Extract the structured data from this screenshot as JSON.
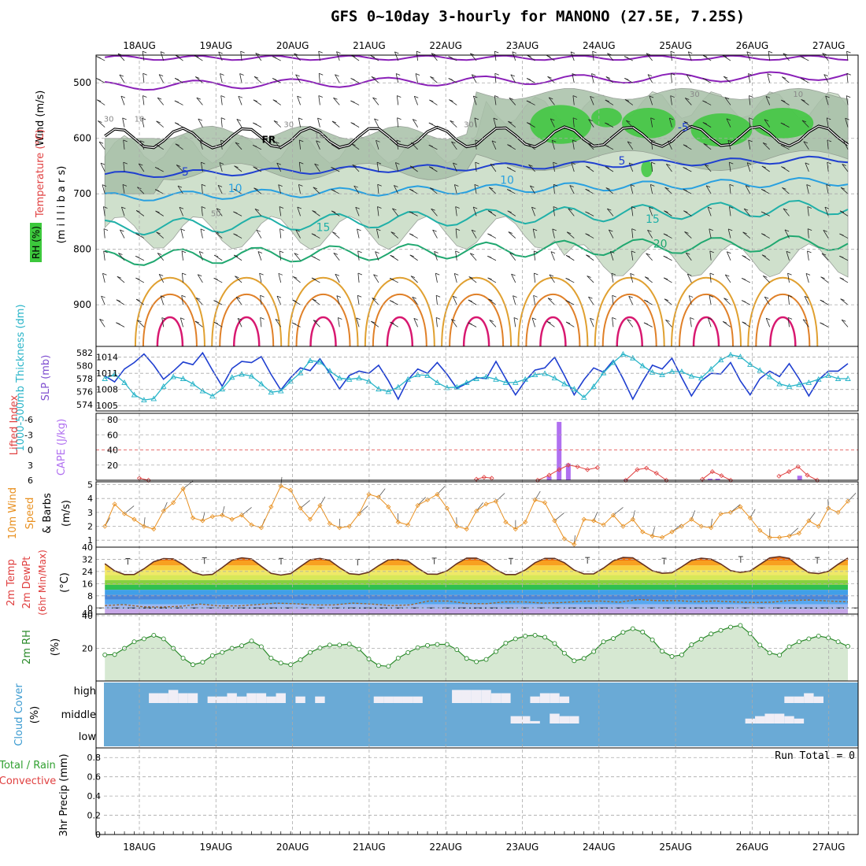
{
  "title": "GFS 0~10day 3-hourly for MANONO (27.5E, 7.25S)",
  "colors": {
    "frame": "#000000",
    "grid": "#aaaaaa",
    "rh_fill": "#cfe0cc",
    "rh_dark": "#a8c0a8",
    "rh_green": "#3cc83c",
    "slp_line": "#1f3fd0",
    "thickness_line": "#28b4c8",
    "cape_bar": "#b070f0",
    "li_line": "#e04040",
    "wind_line": "#e89020",
    "temp_line": "#663322",
    "dew_line": "#996633",
    "rh2m_line": "#2a8a2a",
    "rh2m_fill": "#d6e8d2",
    "cloud_bg": "#6aaad6",
    "cloud_fill": "#f0eef6",
    "precip_line": "#30a030"
  },
  "chart_data": [
    {
      "panel": "upper-air",
      "type": "line",
      "x_dates": [
        "18AUG",
        "19AUG",
        "20AUG",
        "21AUG",
        "22AUG",
        "23AUG",
        "24AUG",
        "25AUG",
        "26AUG",
        "27AUG"
      ],
      "left_labels": {
        "wind": "Wind (m/s)",
        "temperature": "Temperature (°C)",
        "rh": "RH (%)",
        "pressure": "(m i l l i b a r s)"
      },
      "y_ticks": [
        500,
        600,
        700,
        800,
        900
      ],
      "ylim": [
        450,
        975
      ],
      "freezing_label": "FR",
      "isotherms": [
        {
          "label": "-5",
          "level": 580,
          "color": "#1f3fd0",
          "label_x": 7.1
        },
        {
          "label": "5",
          "level": 660,
          "color": "#1f3fd0",
          "label_x": 0.6
        },
        {
          "label": "5",
          "level": 640,
          "color": "#1f3fd0",
          "label_x": 6.3
        },
        {
          "label": "10",
          "level": 690,
          "color": "#28a0e0",
          "label_x": 1.25
        },
        {
          "label": "10",
          "level": 675,
          "color": "#28a0e0",
          "label_x": 4.8
        },
        {
          "label": "15",
          "level": 760,
          "color": "#20b0a8",
          "label_x": 2.4
        },
        {
          "label": "15",
          "level": 745,
          "color": "#20b0a8",
          "label_x": 6.7
        },
        {
          "label": "20",
          "level": 790,
          "color": "#20a870",
          "label_x": 6.8
        }
      ],
      "rh_contour_labels": [
        "30",
        "10",
        "30",
        "10",
        "30",
        "50",
        "30",
        "10"
      ]
    },
    {
      "panel": "slp-thickness",
      "type": "line",
      "left_label_thickness": "1000-500mb Thickness (dm)",
      "left_label_slp": "SLP (mb)",
      "thickness_ticks": [
        582,
        580,
        578,
        576,
        574
      ],
      "slp_ticks": [
        1014,
        1011,
        1008,
        1005
      ],
      "thickness_ylim": [
        573,
        583
      ],
      "slp_ylim": [
        1004,
        1016
      ],
      "series": [
        {
          "name": "SLP",
          "values": [
            1010.5,
            1009.4,
            1011.8,
            1013.0,
            1014.6,
            1012.5,
            1009.9,
            1011.4,
            1013.1,
            1012.6,
            1014.8,
            1011.6,
            1008.6,
            1011.9,
            1013.2,
            1013.0,
            1014.1,
            1010.8,
            1007.9,
            1010.2,
            1012.0,
            1011.5,
            1013.7,
            1011.0,
            1008.1,
            1010.6,
            1011.4,
            1011.0,
            1012.5,
            1009.6,
            1006.2,
            1009.8,
            1011.8,
            1011.0,
            1013.0,
            1010.8,
            1008.2,
            1009.1,
            1010.2,
            1010.0,
            1013.2,
            1010.0,
            1007.0,
            1009.6,
            1011.6,
            1012.0,
            1014.0,
            1010.6,
            1007.0,
            1009.8,
            1012.0,
            1011.2,
            1013.4,
            1010.0,
            1006.2,
            1009.5,
            1012.5,
            1011.8,
            1013.8,
            1010.2,
            1006.8,
            1009.6,
            1011.0,
            1010.9,
            1013.0,
            1009.6,
            1007.0,
            1010.0,
            1011.4,
            1010.4,
            1012.8,
            1010.0,
            1006.8,
            1009.8,
            1011.4,
            1011.4,
            1012.8
          ]
        },
        {
          "name": "Thickness",
          "values": [
            578.0,
            578.7,
            577.4,
            575.5,
            574.7,
            574.9,
            576.8,
            578.3,
            578.0,
            577.2,
            576.1,
            575.3,
            576.4,
            578.2,
            578.7,
            578.4,
            577.2,
            575.9,
            576.1,
            577.6,
            578.9,
            580.8,
            580.6,
            579.2,
            578.1,
            577.9,
            578.1,
            577.6,
            576.4,
            576.0,
            576.7,
            577.9,
            578.6,
            578.5,
            577.4,
            576.6,
            576.7,
            577.4,
            578.0,
            578.3,
            577.9,
            577.4,
            577.4,
            577.9,
            578.6,
            578.8,
            578.1,
            577.2,
            576.4,
            575.1,
            576.8,
            578.9,
            580.5,
            581.8,
            581.2,
            580.0,
            579.0,
            578.6,
            579.1,
            579.1,
            578.4,
            578.1,
            579.5,
            580.9,
            581.7,
            581.4,
            580.2,
            579.3,
            578.3,
            577.2,
            576.8,
            577.1,
            577.4,
            577.9,
            578.5,
            578.0,
            578.0
          ]
        }
      ]
    },
    {
      "panel": "cape-li",
      "type": "bar",
      "left_label_li": "Lifted Index",
      "left_label_cape": "CAPE (J/kg)",
      "li_ticks": [
        "-6",
        "-3",
        "0",
        "3",
        "6"
      ],
      "cape_ticks": [
        80,
        60,
        40,
        20
      ],
      "cape_ylim": [
        0,
        80
      ],
      "cape_bars": [
        {
          "day": 5.35,
          "value": 5
        },
        {
          "day": 5.48,
          "value": 77
        },
        {
          "day": 5.6,
          "value": 22
        },
        {
          "day": 6.35,
          "value": 1
        },
        {
          "day": 7.45,
          "value": 2
        },
        {
          "day": 7.55,
          "value": 2
        },
        {
          "day": 8.62,
          "value": 6
        }
      ],
      "li_points": [
        {
          "day": 0.0,
          "value": 5.6
        },
        {
          "day": 0.12,
          "value": 6.0
        },
        {
          "day": 4.4,
          "value": 5.8
        },
        {
          "day": 4.5,
          "value": 5.4
        },
        {
          "day": 4.6,
          "value": 5.6
        },
        {
          "day": 5.2,
          "value": 6.0
        },
        {
          "day": 5.35,
          "value": 5.0
        },
        {
          "day": 5.48,
          "value": 3.9
        },
        {
          "day": 5.6,
          "value": 3.0
        },
        {
          "day": 5.72,
          "value": 3.3
        },
        {
          "day": 5.85,
          "value": 3.9
        },
        {
          "day": 5.98,
          "value": 3.5
        },
        {
          "day": 6.35,
          "value": 6.0
        },
        {
          "day": 6.5,
          "value": 3.9
        },
        {
          "day": 6.62,
          "value": 3.6
        },
        {
          "day": 6.75,
          "value": 4.6
        },
        {
          "day": 6.88,
          "value": 6.0
        },
        {
          "day": 7.35,
          "value": 5.8
        },
        {
          "day": 7.48,
          "value": 4.3
        },
        {
          "day": 7.6,
          "value": 5.1
        },
        {
          "day": 7.72,
          "value": 6.0
        },
        {
          "day": 8.35,
          "value": 5.2
        },
        {
          "day": 8.48,
          "value": 4.3
        },
        {
          "day": 8.6,
          "value": 3.3
        },
        {
          "day": 8.72,
          "value": 5.0
        },
        {
          "day": 8.85,
          "value": 6.0
        }
      ]
    },
    {
      "panel": "10m-wind",
      "type": "line",
      "left_label_1": "10m Wind",
      "left_label_2": "Speed",
      "left_label_3": "& Barbs",
      "unit": "(m/s)",
      "y_ticks": [
        5,
        4,
        3,
        2,
        1
      ],
      "ylim": [
        0.5,
        5.2
      ],
      "values": [
        2.0,
        3.6,
        2.9,
        2.5,
        2.0,
        1.8,
        3.1,
        3.7,
        4.7,
        2.6,
        2.4,
        2.7,
        2.8,
        2.5,
        2.8,
        2.1,
        1.9,
        3.4,
        4.9,
        4.6,
        3.3,
        2.5,
        3.5,
        2.2,
        1.9,
        2.0,
        2.9,
        4.3,
        4.1,
        3.4,
        2.3,
        2.1,
        3.5,
        3.9,
        4.3,
        3.3,
        2.0,
        1.8,
        3.1,
        3.6,
        3.8,
        2.3,
        1.8,
        2.3,
        3.9,
        3.7,
        2.4,
        1.1,
        0.7,
        2.5,
        2.4,
        2.1,
        2.8,
        2.0,
        2.5,
        1.6,
        1.3,
        1.2,
        1.6,
        2.0,
        2.5,
        2.0,
        1.9,
        2.9,
        3.0,
        3.4,
        2.6,
        1.7,
        1.2,
        1.2,
        1.3,
        1.5,
        2.4,
        2.0,
        3.3,
        3.0,
        3.8
      ]
    },
    {
      "panel": "2m-temp",
      "type": "area",
      "left_label_1": "2m Temp",
      "left_label_2": "2m DewPt",
      "left_label_3": "(6hr Min/Max)",
      "unit": "(°C)",
      "y_ticks": [
        40,
        32,
        24,
        16,
        8,
        0
      ],
      "bottom_label": "40",
      "ylim": [
        -4,
        40
      ],
      "temperature_bands": [
        "#c8a8e8",
        "#a0b8f0",
        "#58a8f0",
        "#4a86d8",
        "#40a0e8",
        "#30c050",
        "#88d040",
        "#d8e858",
        "#f0e868",
        "#f8d040",
        "#f8a020",
        "#f07010",
        "#e03c10",
        "#b81c10"
      ],
      "day_max": [
        32.5,
        33.0,
        32.6,
        32.0,
        32.8,
        32.6,
        33.2,
        32.7,
        33.8,
        33.2
      ],
      "night_min": [
        22.0,
        21.6,
        21.6,
        22.0,
        22.2,
        22.0,
        22.4,
        22.8,
        23.4,
        22.6
      ],
      "dewpoint": [
        1.6,
        2.2,
        0.8,
        0.6,
        1.2,
        2.6,
        1.4,
        1.4,
        2.2,
        3.2,
        2.8,
        2.0,
        2.0,
        3.2,
        2.6,
        1.6,
        2.0,
        4.6,
        4.6,
        3.0,
        2.8,
        4.0,
        4.0,
        3.2,
        3.6,
        4.4,
        4.6,
        3.8,
        5.6,
        4.8,
        4.8,
        4.2,
        4.6,
        4.0,
        3.6,
        3.8,
        5.0,
        5.2,
        4.6,
        4.0
      ]
    },
    {
      "panel": "2m-rh",
      "type": "area",
      "left_label": "2m RH",
      "unit": "(%)",
      "y_ticks": [
        40,
        20
      ],
      "ylim": [
        0,
        40
      ],
      "values": [
        16.0,
        16.2,
        20.0,
        24.0,
        25.8,
        28.0,
        25.8,
        20.0,
        14.0,
        10.0,
        11.5,
        15.5,
        17.5,
        20.0,
        21.6,
        24.5,
        21.0,
        14.0,
        11.0,
        10.0,
        13.0,
        17.5,
        20.2,
        22.0,
        22.0,
        22.6,
        19.5,
        13.5,
        9.5,
        9.0,
        14.0,
        17.4,
        20.4,
        21.8,
        22.4,
        22.4,
        19.2,
        13.8,
        11.8,
        13.2,
        18.0,
        23.2,
        25.8,
        27.5,
        28.0,
        26.8,
        23.0,
        17.0,
        12.4,
        13.8,
        18.0,
        24.0,
        26.0,
        29.8,
        32.0,
        30.0,
        25.2,
        18.2,
        15.0,
        16.0,
        22.2,
        25.6,
        28.8,
        31.0,
        33.0,
        34.0,
        29.0,
        22.0,
        17.2,
        15.8,
        21.0,
        24.0,
        25.8,
        27.5,
        26.4,
        24.0,
        21.2
      ]
    },
    {
      "panel": "cloud-cover",
      "type": "bar",
      "left_label": "Cloud Cover",
      "unit": "(%)",
      "layer_labels": [
        "high",
        "middle",
        "low"
      ],
      "high": [
        0,
        0,
        0,
        0,
        0,
        30,
        30,
        40,
        30,
        30,
        0,
        20,
        20,
        30,
        20,
        30,
        30,
        20,
        30,
        0,
        20,
        0,
        20,
        0,
        0,
        0,
        0,
        0,
        20,
        20,
        20,
        20,
        20,
        0,
        0,
        0,
        40,
        40,
        40,
        40,
        30,
        30,
        0,
        0,
        20,
        30,
        30,
        20,
        0,
        0,
        0,
        0,
        0,
        0,
        0,
        0,
        0,
        0,
        0,
        0,
        0,
        0,
        0,
        0,
        0,
        0,
        0,
        0,
        0,
        0,
        20,
        20,
        30,
        20,
        0,
        0,
        0,
        0,
        0
      ],
      "middle": [
        0,
        0,
        0,
        0,
        0,
        0,
        0,
        0,
        0,
        0,
        0,
        0,
        0,
        0,
        0,
        0,
        0,
        0,
        0,
        0,
        0,
        0,
        0,
        0,
        0,
        0,
        0,
        0,
        0,
        0,
        0,
        0,
        0,
        0,
        0,
        0,
        0,
        0,
        0,
        0,
        0,
        0,
        30,
        30,
        10,
        0,
        40,
        30,
        30,
        0,
        0,
        0,
        0,
        0,
        0,
        0,
        0,
        0,
        0,
        0,
        0,
        0,
        0,
        0,
        0,
        0,
        20,
        30,
        40,
        40,
        30,
        20,
        0,
        0,
        0,
        0,
        0
      ],
      "low": []
    },
    {
      "panel": "precip",
      "type": "bar",
      "left_label_1": "Total / Rain",
      "left_label_2": "Convective",
      "unit": "3hr Precip (mm)",
      "y_ticks": [
        "0.8",
        "0.6",
        "0.4",
        "0.2",
        "0"
      ],
      "ylim": [
        0,
        0.9
      ],
      "run_total": "Run Total = 0",
      "values": []
    }
  ]
}
